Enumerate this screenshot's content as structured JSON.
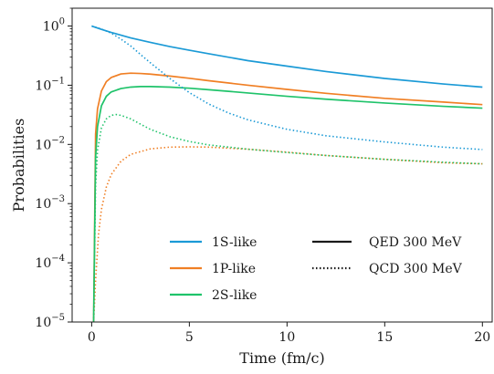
{
  "chart_data": {
    "type": "line",
    "title": "",
    "xlabel": "Time (fm/c)",
    "ylabel": "Probabilities",
    "xlim": [
      -1,
      20.5
    ],
    "ylim": [
      1e-05,
      2
    ],
    "yscale": "log",
    "grid": false,
    "legend_placement": "lower-right",
    "x_ticks": [
      0,
      5,
      10,
      15,
      20
    ],
    "y_ticks": [
      1e-05,
      0.0001,
      0.001,
      0.01,
      0.1,
      1
    ],
    "y_tick_labels": [
      {
        "base": "10",
        "exp": "−5"
      },
      {
        "base": "10",
        "exp": "−4"
      },
      {
        "base": "10",
        "exp": "−3"
      },
      {
        "base": "10",
        "exp": "−2"
      },
      {
        "base": "10",
        "exp": "−1"
      },
      {
        "base": "10",
        "exp": "0"
      }
    ],
    "legend": {
      "states": [
        {
          "label": "1S-like",
          "color": "#1b9ad6"
        },
        {
          "label": "1P-like",
          "color": "#f07f24"
        },
        {
          "label": "2S-like",
          "color": "#1fc36a"
        }
      ],
      "styles": [
        {
          "label": "QED 300 MeV",
          "dash": "solid"
        },
        {
          "label": "QCD 300 MeV",
          "dash": "dotted"
        }
      ]
    },
    "series": [
      {
        "name": "1S-like",
        "style": "solid",
        "color": "#1b9ad6",
        "x": [
          0,
          0.5,
          1,
          2,
          3,
          4,
          5,
          6,
          8,
          10,
          12,
          15,
          18,
          20
        ],
        "y": [
          1.0,
          0.88,
          0.78,
          0.63,
          0.53,
          0.45,
          0.39,
          0.34,
          0.26,
          0.21,
          0.17,
          0.13,
          0.105,
          0.093
        ]
      },
      {
        "name": "1P-like",
        "style": "solid",
        "color": "#f07f24",
        "x": [
          0.1,
          0.2,
          0.3,
          0.5,
          0.75,
          1,
          1.5,
          2,
          2.5,
          3,
          4,
          5,
          6,
          8,
          10,
          12,
          15,
          18,
          20
        ],
        "y": [
          1e-05,
          0.015,
          0.04,
          0.08,
          0.115,
          0.135,
          0.155,
          0.16,
          0.158,
          0.154,
          0.143,
          0.131,
          0.119,
          0.1,
          0.085,
          0.073,
          0.06,
          0.052,
          0.047
        ]
      },
      {
        "name": "2S-like",
        "style": "solid",
        "color": "#1fc36a",
        "x": [
          0.1,
          0.2,
          0.3,
          0.5,
          0.75,
          1,
          1.5,
          2,
          2.5,
          3,
          4,
          5,
          6,
          8,
          10,
          12,
          15,
          18,
          20
        ],
        "y": [
          1e-05,
          0.006,
          0.02,
          0.045,
          0.065,
          0.077,
          0.088,
          0.093,
          0.095,
          0.095,
          0.093,
          0.089,
          0.084,
          0.074,
          0.065,
          0.058,
          0.05,
          0.044,
          0.041
        ]
      },
      {
        "name": "1S-like",
        "style": "dotted",
        "color": "#1b9ad6",
        "x": [
          0,
          0.5,
          1,
          1.5,
          2,
          2.5,
          3,
          4,
          5,
          6,
          7,
          8,
          10,
          12,
          15,
          18,
          20
        ],
        "y": [
          1.0,
          0.89,
          0.76,
          0.6,
          0.46,
          0.33,
          0.24,
          0.13,
          0.075,
          0.048,
          0.034,
          0.026,
          0.018,
          0.014,
          0.011,
          0.009,
          0.0082
        ]
      },
      {
        "name": "1P-like",
        "style": "dotted",
        "color": "#f07f24",
        "x": [
          0.1,
          0.2,
          0.35,
          0.5,
          0.75,
          1,
          1.5,
          2,
          3,
          4,
          5,
          6,
          8,
          10,
          12,
          15,
          18,
          20
        ],
        "y": [
          1e-05,
          5e-05,
          0.0003,
          0.0008,
          0.0019,
          0.0031,
          0.0052,
          0.0068,
          0.0084,
          0.009,
          0.0091,
          0.009,
          0.0083,
          0.0074,
          0.0065,
          0.0056,
          0.0049,
          0.0047
        ]
      },
      {
        "name": "2S-like",
        "style": "dotted",
        "color": "#1fc36a",
        "x": [
          0.1,
          0.2,
          0.3,
          0.5,
          0.75,
          1,
          1.25,
          1.5,
          2,
          2.5,
          3,
          4,
          5,
          6,
          8,
          10,
          12,
          15,
          18,
          20
        ],
        "y": [
          1e-05,
          0.002,
          0.008,
          0.019,
          0.027,
          0.031,
          0.032,
          0.031,
          0.027,
          0.022,
          0.018,
          0.0135,
          0.0112,
          0.0098,
          0.0083,
          0.0073,
          0.0065,
          0.0056,
          0.005,
          0.0047
        ]
      }
    ]
  }
}
